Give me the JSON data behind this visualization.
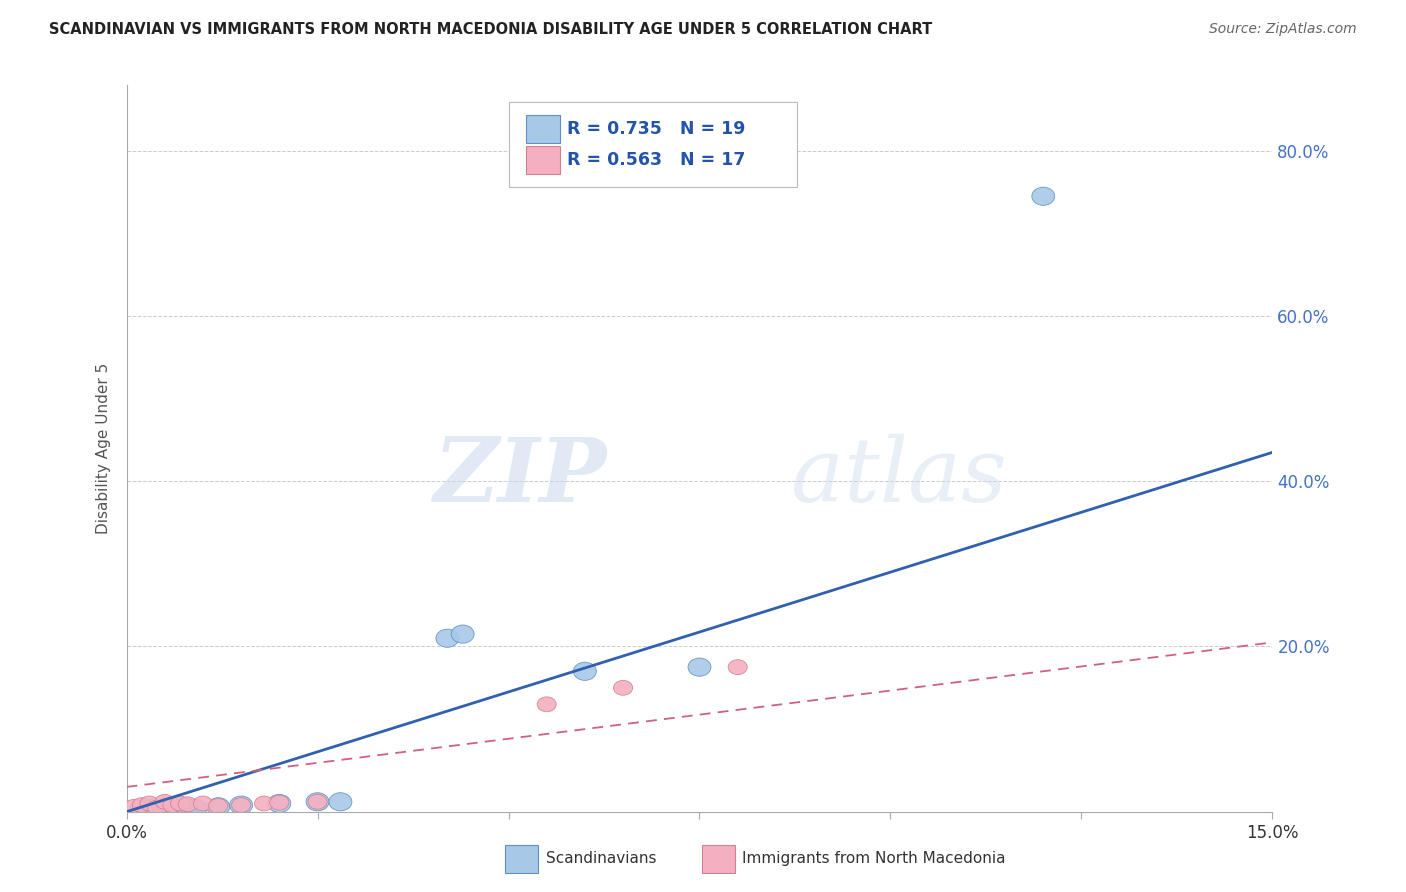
{
  "title": "SCANDINAVIAN VS IMMIGRANTS FROM NORTH MACEDONIA DISABILITY AGE UNDER 5 CORRELATION CHART",
  "source": "Source: ZipAtlas.com",
  "ylabel": "Disability Age Under 5",
  "xlim": [
    0.0,
    0.15
  ],
  "ylim": [
    0.0,
    0.88
  ],
  "x_ticks": [
    0.0,
    0.025,
    0.05,
    0.075,
    0.1,
    0.125,
    0.15
  ],
  "x_tick_labels": [
    "0.0%",
    "",
    "",
    "",
    "",
    "",
    "15.0%"
  ],
  "y_ticks": [
    0.0,
    0.2,
    0.4,
    0.6,
    0.8
  ],
  "y_tick_labels": [
    "",
    "20.0%",
    "40.0%",
    "60.0%",
    "80.0%"
  ],
  "blue_R": 0.735,
  "blue_N": 19,
  "pink_R": 0.563,
  "pink_N": 17,
  "blue_color": "#a8c8e8",
  "pink_color": "#f4b0c0",
  "blue_edge_color": "#6090c0",
  "pink_edge_color": "#d08090",
  "blue_line_color": "#3060b0",
  "pink_line_color": "#d06080",
  "legend_label_blue": "Scandinavians",
  "legend_label_pink": "Immigrants from North Macedonia",
  "blue_points_x": [
    0.002,
    0.003,
    0.004,
    0.005,
    0.005,
    0.006,
    0.007,
    0.008,
    0.009,
    0.012,
    0.015,
    0.02,
    0.025,
    0.028,
    0.042,
    0.044,
    0.06,
    0.075,
    0.12
  ],
  "blue_points_y": [
    0.003,
    0.004,
    0.002,
    0.005,
    0.003,
    0.004,
    0.003,
    0.005,
    0.004,
    0.006,
    0.008,
    0.01,
    0.012,
    0.012,
    0.21,
    0.215,
    0.17,
    0.175,
    0.745
  ],
  "pink_points_x": [
    0.001,
    0.002,
    0.003,
    0.004,
    0.005,
    0.006,
    0.007,
    0.008,
    0.01,
    0.012,
    0.015,
    0.018,
    0.02,
    0.025,
    0.055,
    0.065,
    0.08
  ],
  "pink_points_y": [
    0.006,
    0.008,
    0.01,
    0.005,
    0.012,
    0.008,
    0.01,
    0.009,
    0.01,
    0.007,
    0.008,
    0.01,
    0.011,
    0.012,
    0.13,
    0.15,
    0.175
  ],
  "blue_line_x0": 0.0,
  "blue_line_y0": 0.0,
  "blue_line_x1": 0.15,
  "blue_line_y1": 0.435,
  "pink_line_x0": 0.0,
  "pink_line_y0": 0.03,
  "pink_line_x1": 0.15,
  "pink_line_y1": 0.205
}
